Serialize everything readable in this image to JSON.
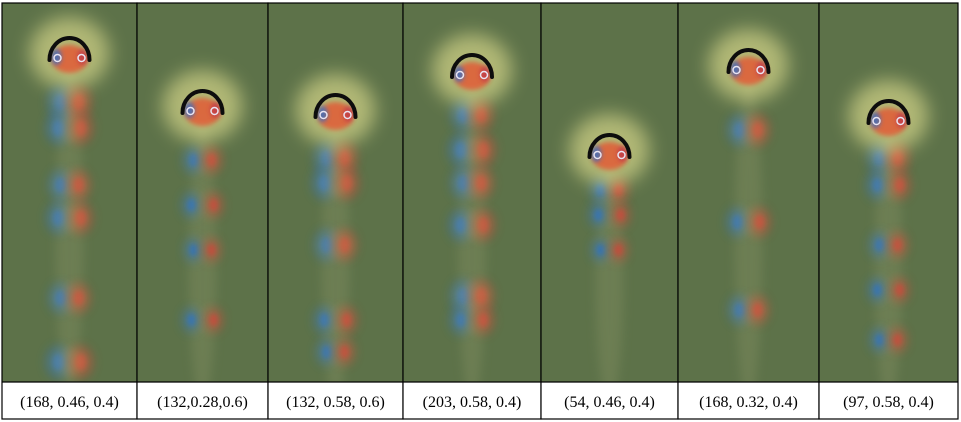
{
  "colors": {
    "background_field": "#5d7249",
    "frame": "#000000",
    "caption_background": "#ffffff"
  },
  "panels": [
    {
      "label": "(168, 0.46, 0.4)"
    },
    {
      "label": "(132,0.28,0.6)"
    },
    {
      "label": "(132, 0.58, 0.6)"
    },
    {
      "label": "(203, 0.58, 0.4)"
    },
    {
      "label": "(54, 0.46, 0.4)"
    },
    {
      "label": "(168, 0.32, 0.4)"
    },
    {
      "label": "(97, 0.58, 0.4)"
    }
  ]
}
